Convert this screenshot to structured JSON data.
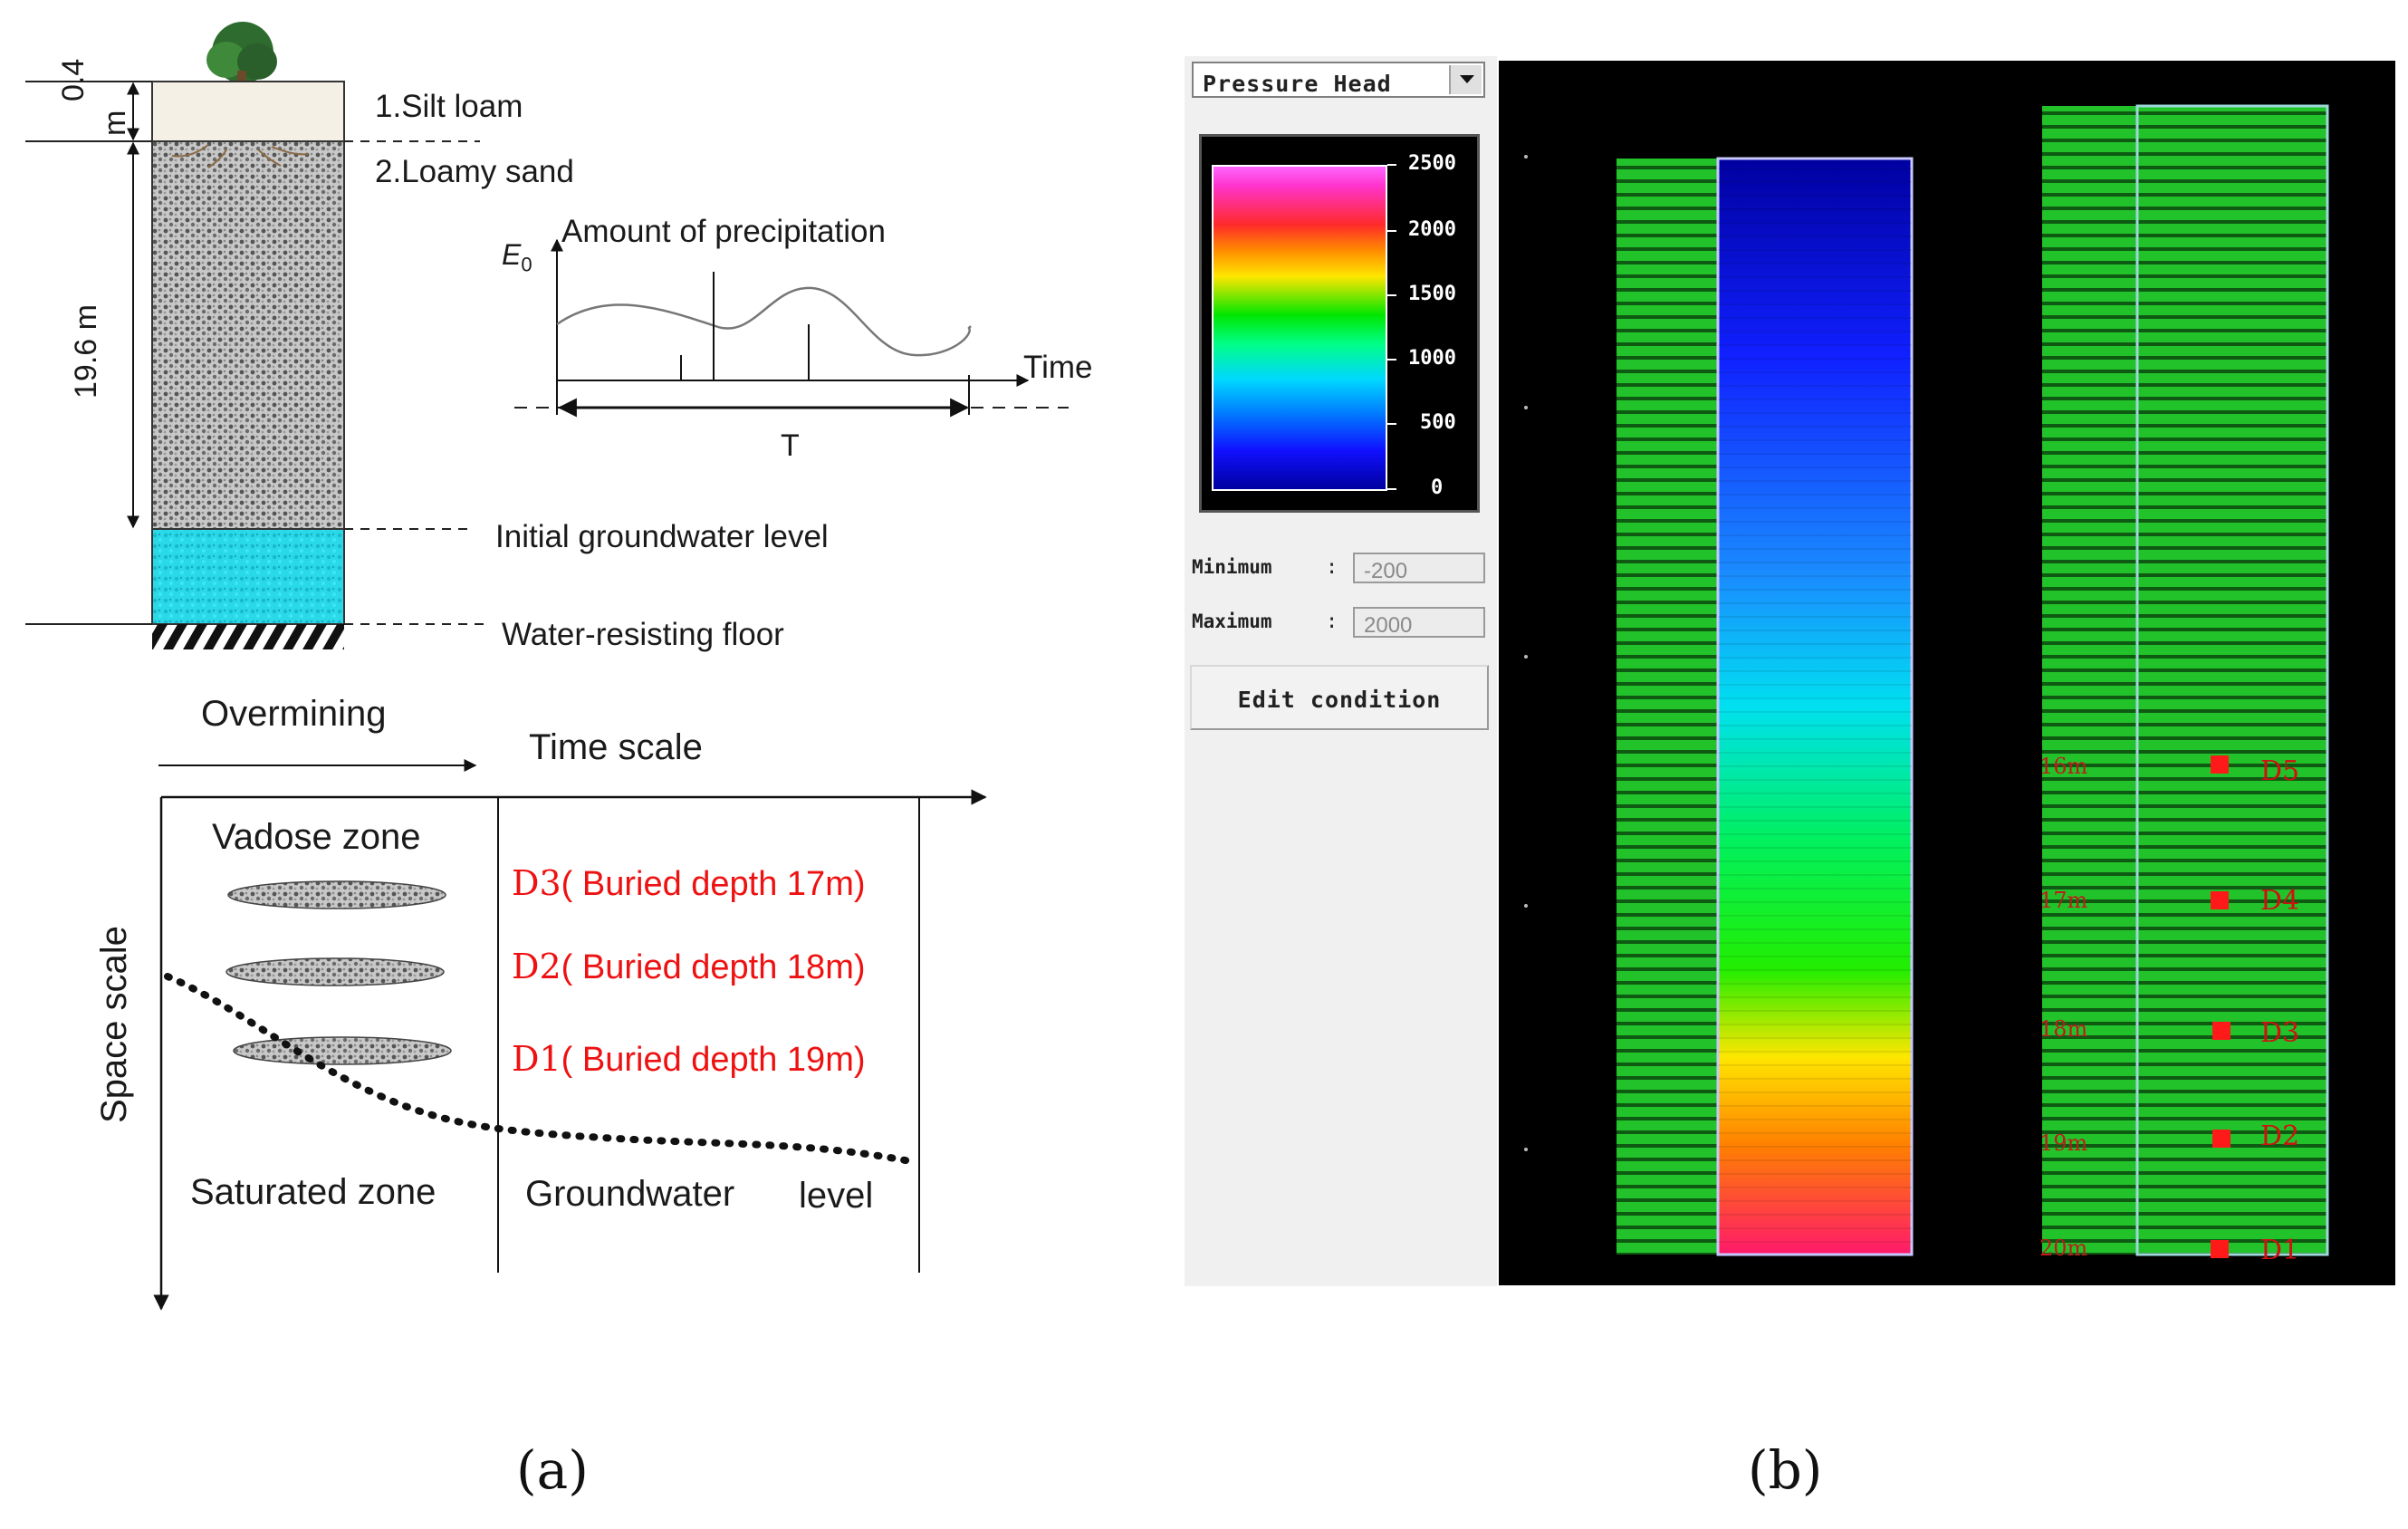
{
  "panel_a": {
    "dim_top": "0.4",
    "dim_top_unit": "m",
    "dim_main": "19.6 m",
    "layer1": "1.Silt loam",
    "layer2": "2.Loamy sand",
    "precip_title": "Amount of precipitation",
    "e0": "E",
    "e0_sub": "0",
    "time": "Time",
    "period": "T",
    "initial_gw": "Initial groundwater level",
    "floor": "Water-resisting floor",
    "overmining": "Overmining",
    "time_scale": "Time scale",
    "space_scale": "Space scale",
    "vadose": "Vadose zone",
    "saturated": "Saturated zone",
    "groundwater": "Groundwater",
    "gw_level": "level",
    "probes": [
      {
        "id": "D3",
        "text": "( Buried depth 17m)"
      },
      {
        "id": "D2",
        "text": "( Buried depth 18m)"
      },
      {
        "id": "D1",
        "text": "( Buried depth 19m)"
      }
    ],
    "caption": "(a)"
  },
  "panel_b": {
    "dropdown_value": "Pressure Head",
    "legend_ticks": [
      "2500",
      "2000",
      "1500",
      "1000",
      "500",
      "0"
    ],
    "minimum_label": "Minimum",
    "minimum_value": "-200",
    "maximum_label": "Maximum",
    "maximum_value": "2000",
    "colon": ":",
    "edit_button": "Edit condition",
    "depth_labels": [
      "16m",
      "17m",
      "18m",
      "19m",
      "20m"
    ],
    "monitor_points": [
      "D5",
      "D4",
      "D3",
      "D2",
      "D1"
    ],
    "caption": "(b)",
    "colors": {
      "green": "#22c32a",
      "black": "#000000",
      "marker": "#ff1a1a"
    }
  }
}
